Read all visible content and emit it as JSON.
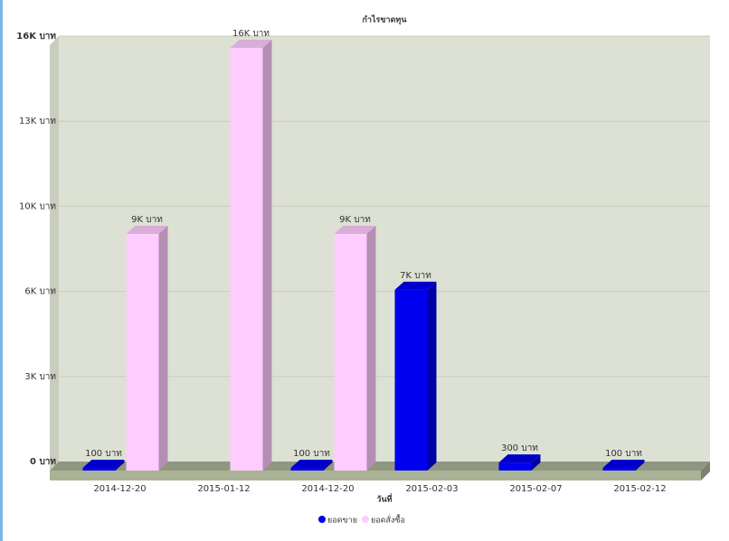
{
  "chart_data": {
    "type": "bar3d",
    "title": "กำไรขาดทุน",
    "x_label": "วันที่",
    "categories": [
      "2014-12-20",
      "2015-01-12",
      "2014-12-20",
      "2015-02-03",
      "2015-02-07",
      "2015-02-12"
    ],
    "series": [
      {
        "name": "ยอดขาย",
        "color": "#0000ee",
        "values": [
          100,
          null,
          100,
          6800,
          300,
          100
        ],
        "value_labels": [
          "100 บาท",
          null,
          "100 บาท",
          "7K บาท",
          "300 บาท",
          "100 บาท"
        ]
      },
      {
        "name": "ยอดสั่งซื้อ",
        "color": "#ffccff",
        "values": [
          8900,
          15900,
          8900,
          null,
          null,
          null
        ],
        "value_labels": [
          "9K บาท",
          "16K บาท",
          "9K บาท",
          null,
          null,
          null
        ]
      }
    ],
    "ylim": [
      0,
      16000
    ],
    "yticks": [
      {
        "value": 0,
        "label": "0 บาท"
      },
      {
        "value": 3200,
        "label": "3K บาท"
      },
      {
        "value": 6400,
        "label": "6K บาท"
      },
      {
        "value": 9600,
        "label": "10K บาท"
      },
      {
        "value": 12800,
        "label": "13K บาท"
      },
      {
        "value": 16000,
        "label": "16K บาท"
      }
    ],
    "grid": true,
    "legend": "bottom"
  }
}
